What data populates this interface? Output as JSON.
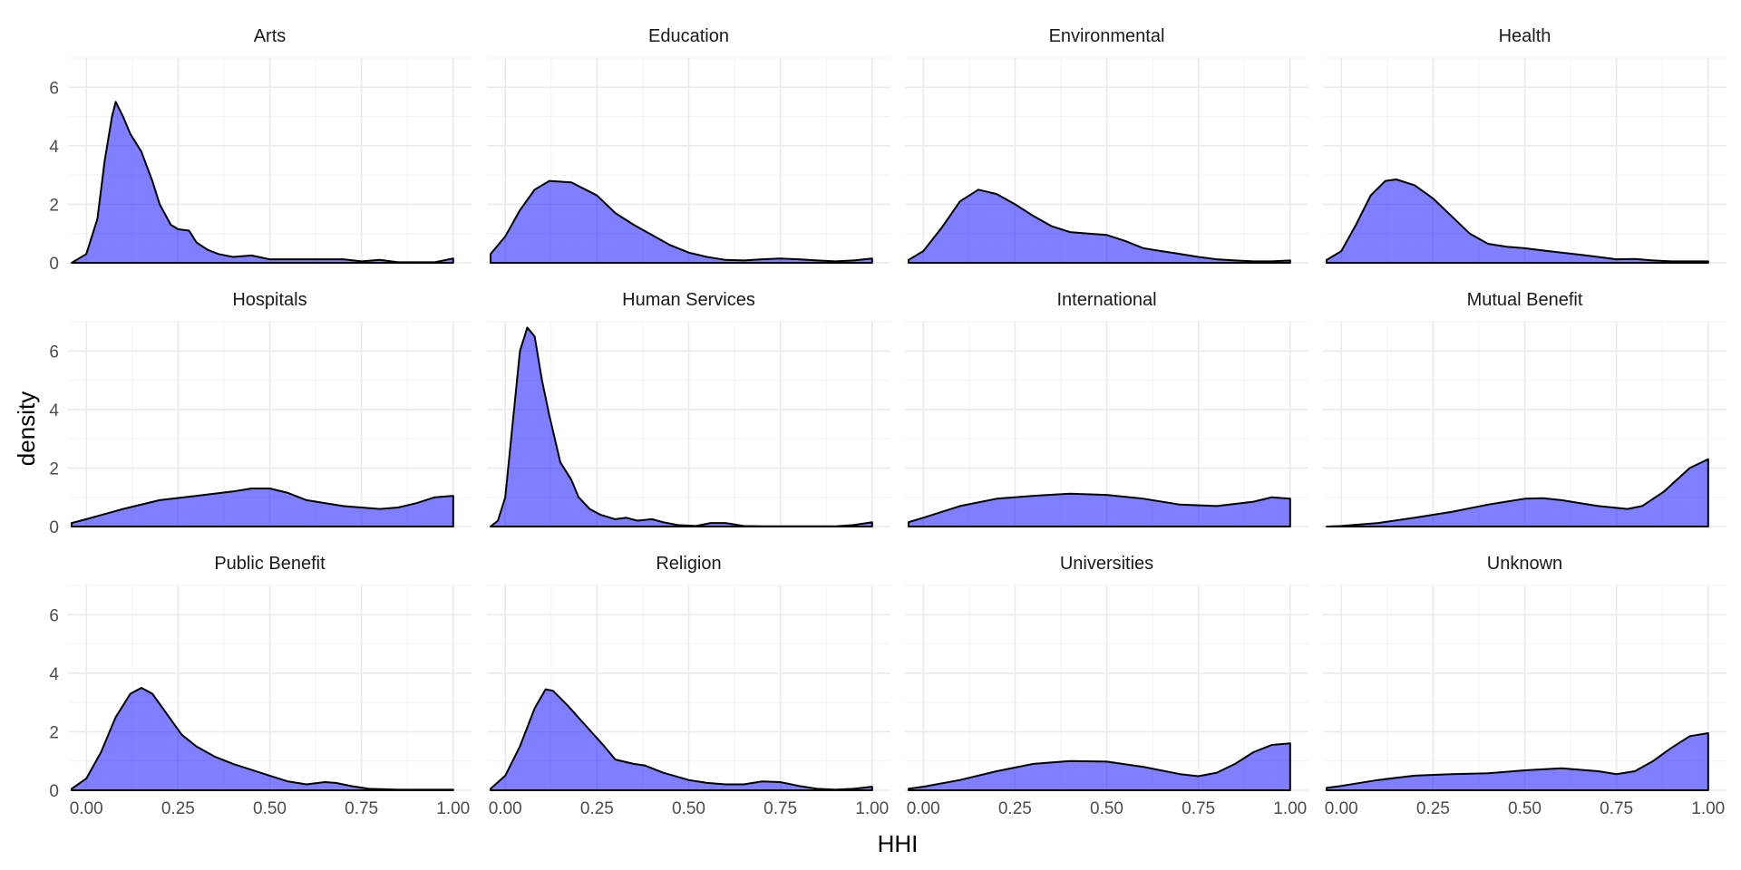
{
  "chart_data": {
    "type": "area",
    "xlabel": "HHI",
    "ylabel": "density",
    "xlim": [
      -0.05,
      1.05
    ],
    "ylim": [
      0,
      7
    ],
    "x_ticks": [
      0.0,
      0.25,
      0.5,
      0.75,
      1.0
    ],
    "x_tick_labels": [
      "0.00",
      "0.25",
      "0.50",
      "0.75",
      "1.00"
    ],
    "y_ticks": [
      0,
      2,
      4,
      6
    ],
    "y_tick_labels": [
      "0",
      "2",
      "4",
      "6"
    ],
    "grid": true,
    "fill_color": "#0000ff",
    "fill_opacity": 0.5,
    "line_color": "#000000",
    "panels": [
      {
        "title": "Arts",
        "points": [
          [
            -0.04,
            0.0
          ],
          [
            0.0,
            0.3
          ],
          [
            0.03,
            1.5
          ],
          [
            0.05,
            3.5
          ],
          [
            0.07,
            5.0
          ],
          [
            0.08,
            5.5
          ],
          [
            0.1,
            5.0
          ],
          [
            0.12,
            4.4
          ],
          [
            0.15,
            3.8
          ],
          [
            0.18,
            2.8
          ],
          [
            0.2,
            2.0
          ],
          [
            0.23,
            1.3
          ],
          [
            0.25,
            1.15
          ],
          [
            0.28,
            1.1
          ],
          [
            0.3,
            0.7
          ],
          [
            0.33,
            0.45
          ],
          [
            0.36,
            0.3
          ],
          [
            0.4,
            0.2
          ],
          [
            0.45,
            0.25
          ],
          [
            0.5,
            0.12
          ],
          [
            0.6,
            0.12
          ],
          [
            0.7,
            0.12
          ],
          [
            0.75,
            0.05
          ],
          [
            0.8,
            0.1
          ],
          [
            0.85,
            0.02
          ],
          [
            0.9,
            0.02
          ],
          [
            0.95,
            0.02
          ],
          [
            1.0,
            0.15
          ]
        ]
      },
      {
        "title": "Education",
        "points": [
          [
            -0.04,
            0.3
          ],
          [
            0.0,
            0.9
          ],
          [
            0.04,
            1.8
          ],
          [
            0.08,
            2.5
          ],
          [
            0.12,
            2.8
          ],
          [
            0.18,
            2.75
          ],
          [
            0.25,
            2.3
          ],
          [
            0.3,
            1.7
          ],
          [
            0.35,
            1.3
          ],
          [
            0.4,
            0.95
          ],
          [
            0.45,
            0.6
          ],
          [
            0.5,
            0.35
          ],
          [
            0.55,
            0.2
          ],
          [
            0.6,
            0.1
          ],
          [
            0.65,
            0.08
          ],
          [
            0.7,
            0.12
          ],
          [
            0.75,
            0.15
          ],
          [
            0.8,
            0.12
          ],
          [
            0.85,
            0.08
          ],
          [
            0.9,
            0.05
          ],
          [
            0.95,
            0.08
          ],
          [
            1.0,
            0.15
          ]
        ]
      },
      {
        "title": "Environmental",
        "points": [
          [
            -0.04,
            0.1
          ],
          [
            0.0,
            0.4
          ],
          [
            0.05,
            1.2
          ],
          [
            0.1,
            2.1
          ],
          [
            0.15,
            2.5
          ],
          [
            0.2,
            2.35
          ],
          [
            0.25,
            2.0
          ],
          [
            0.3,
            1.6
          ],
          [
            0.35,
            1.25
          ],
          [
            0.4,
            1.05
          ],
          [
            0.45,
            1.0
          ],
          [
            0.5,
            0.95
          ],
          [
            0.55,
            0.75
          ],
          [
            0.6,
            0.5
          ],
          [
            0.65,
            0.4
          ],
          [
            0.7,
            0.3
          ],
          [
            0.75,
            0.2
          ],
          [
            0.8,
            0.12
          ],
          [
            0.85,
            0.08
          ],
          [
            0.9,
            0.05
          ],
          [
            0.95,
            0.05
          ],
          [
            1.0,
            0.08
          ]
        ]
      },
      {
        "title": "Health",
        "points": [
          [
            -0.04,
            0.1
          ],
          [
            0.0,
            0.4
          ],
          [
            0.04,
            1.3
          ],
          [
            0.08,
            2.3
          ],
          [
            0.12,
            2.8
          ],
          [
            0.15,
            2.85
          ],
          [
            0.2,
            2.65
          ],
          [
            0.25,
            2.2
          ],
          [
            0.3,
            1.6
          ],
          [
            0.35,
            1.0
          ],
          [
            0.4,
            0.65
          ],
          [
            0.45,
            0.55
          ],
          [
            0.5,
            0.5
          ],
          [
            0.55,
            0.42
          ],
          [
            0.6,
            0.35
          ],
          [
            0.65,
            0.28
          ],
          [
            0.7,
            0.2
          ],
          [
            0.75,
            0.12
          ],
          [
            0.8,
            0.13
          ],
          [
            0.85,
            0.08
          ],
          [
            0.9,
            0.05
          ],
          [
            0.95,
            0.05
          ],
          [
            1.0,
            0.05
          ]
        ]
      },
      {
        "title": "Hospitals",
        "points": [
          [
            -0.04,
            0.12
          ],
          [
            0.0,
            0.25
          ],
          [
            0.1,
            0.6
          ],
          [
            0.2,
            0.9
          ],
          [
            0.3,
            1.05
          ],
          [
            0.4,
            1.2
          ],
          [
            0.45,
            1.3
          ],
          [
            0.5,
            1.3
          ],
          [
            0.55,
            1.15
          ],
          [
            0.6,
            0.9
          ],
          [
            0.7,
            0.7
          ],
          [
            0.8,
            0.6
          ],
          [
            0.85,
            0.65
          ],
          [
            0.9,
            0.8
          ],
          [
            0.95,
            1.0
          ],
          [
            1.0,
            1.05
          ]
        ]
      },
      {
        "title": "Human Services",
        "points": [
          [
            -0.04,
            0.0
          ],
          [
            -0.02,
            0.2
          ],
          [
            0.0,
            1.0
          ],
          [
            0.02,
            3.5
          ],
          [
            0.04,
            6.0
          ],
          [
            0.06,
            6.8
          ],
          [
            0.08,
            6.5
          ],
          [
            0.1,
            5.0
          ],
          [
            0.12,
            3.8
          ],
          [
            0.15,
            2.2
          ],
          [
            0.18,
            1.6
          ],
          [
            0.2,
            1.0
          ],
          [
            0.23,
            0.6
          ],
          [
            0.26,
            0.4
          ],
          [
            0.3,
            0.25
          ],
          [
            0.33,
            0.3
          ],
          [
            0.36,
            0.2
          ],
          [
            0.4,
            0.25
          ],
          [
            0.43,
            0.15
          ],
          [
            0.47,
            0.05
          ],
          [
            0.52,
            0.02
          ],
          [
            0.56,
            0.12
          ],
          [
            0.6,
            0.12
          ],
          [
            0.65,
            0.02
          ],
          [
            0.7,
            0.01
          ],
          [
            0.8,
            0.01
          ],
          [
            0.9,
            0.01
          ],
          [
            0.95,
            0.05
          ],
          [
            1.0,
            0.15
          ]
        ]
      },
      {
        "title": "International",
        "points": [
          [
            -0.04,
            0.15
          ],
          [
            0.0,
            0.3
          ],
          [
            0.1,
            0.7
          ],
          [
            0.2,
            0.95
          ],
          [
            0.3,
            1.05
          ],
          [
            0.4,
            1.12
          ],
          [
            0.5,
            1.08
          ],
          [
            0.6,
            0.95
          ],
          [
            0.7,
            0.75
          ],
          [
            0.8,
            0.7
          ],
          [
            0.9,
            0.85
          ],
          [
            0.95,
            1.0
          ],
          [
            1.0,
            0.95
          ]
        ]
      },
      {
        "title": "Mutual Benefit",
        "points": [
          [
            -0.04,
            0.0
          ],
          [
            0.0,
            0.02
          ],
          [
            0.1,
            0.12
          ],
          [
            0.2,
            0.3
          ],
          [
            0.3,
            0.5
          ],
          [
            0.4,
            0.75
          ],
          [
            0.5,
            0.95
          ],
          [
            0.55,
            0.97
          ],
          [
            0.6,
            0.9
          ],
          [
            0.7,
            0.7
          ],
          [
            0.78,
            0.6
          ],
          [
            0.82,
            0.7
          ],
          [
            0.88,
            1.2
          ],
          [
            0.95,
            2.0
          ],
          [
            1.0,
            2.3
          ]
        ]
      },
      {
        "title": "Public Benefit",
        "points": [
          [
            -0.04,
            0.05
          ],
          [
            0.0,
            0.4
          ],
          [
            0.04,
            1.3
          ],
          [
            0.08,
            2.5
          ],
          [
            0.12,
            3.3
          ],
          [
            0.15,
            3.5
          ],
          [
            0.18,
            3.3
          ],
          [
            0.22,
            2.6
          ],
          [
            0.26,
            1.9
          ],
          [
            0.3,
            1.5
          ],
          [
            0.35,
            1.15
          ],
          [
            0.4,
            0.9
          ],
          [
            0.45,
            0.7
          ],
          [
            0.5,
            0.5
          ],
          [
            0.55,
            0.3
          ],
          [
            0.6,
            0.2
          ],
          [
            0.65,
            0.28
          ],
          [
            0.68,
            0.25
          ],
          [
            0.72,
            0.15
          ],
          [
            0.77,
            0.05
          ],
          [
            0.85,
            0.02
          ],
          [
            0.9,
            0.02
          ],
          [
            0.95,
            0.02
          ],
          [
            1.0,
            0.02
          ]
        ]
      },
      {
        "title": "Religion",
        "points": [
          [
            -0.04,
            0.05
          ],
          [
            0.0,
            0.5
          ],
          [
            0.04,
            1.5
          ],
          [
            0.08,
            2.8
          ],
          [
            0.11,
            3.45
          ],
          [
            0.13,
            3.4
          ],
          [
            0.17,
            2.9
          ],
          [
            0.22,
            2.2
          ],
          [
            0.27,
            1.5
          ],
          [
            0.3,
            1.05
          ],
          [
            0.35,
            0.9
          ],
          [
            0.38,
            0.85
          ],
          [
            0.43,
            0.6
          ],
          [
            0.5,
            0.35
          ],
          [
            0.55,
            0.25
          ],
          [
            0.6,
            0.2
          ],
          [
            0.65,
            0.2
          ],
          [
            0.7,
            0.3
          ],
          [
            0.75,
            0.28
          ],
          [
            0.8,
            0.15
          ],
          [
            0.85,
            0.05
          ],
          [
            0.9,
            0.02
          ],
          [
            0.95,
            0.05
          ],
          [
            1.0,
            0.12
          ]
        ]
      },
      {
        "title": "Universities",
        "points": [
          [
            -0.04,
            0.05
          ],
          [
            0.0,
            0.12
          ],
          [
            0.1,
            0.35
          ],
          [
            0.2,
            0.65
          ],
          [
            0.3,
            0.9
          ],
          [
            0.4,
            1.0
          ],
          [
            0.5,
            0.98
          ],
          [
            0.6,
            0.8
          ],
          [
            0.7,
            0.55
          ],
          [
            0.75,
            0.48
          ],
          [
            0.8,
            0.6
          ],
          [
            0.85,
            0.9
          ],
          [
            0.9,
            1.3
          ],
          [
            0.95,
            1.55
          ],
          [
            1.0,
            1.6
          ]
        ]
      },
      {
        "title": "Unknown",
        "points": [
          [
            -0.04,
            0.08
          ],
          [
            0.0,
            0.15
          ],
          [
            0.1,
            0.35
          ],
          [
            0.2,
            0.5
          ],
          [
            0.3,
            0.55
          ],
          [
            0.4,
            0.58
          ],
          [
            0.5,
            0.68
          ],
          [
            0.6,
            0.75
          ],
          [
            0.7,
            0.65
          ],
          [
            0.75,
            0.55
          ],
          [
            0.8,
            0.65
          ],
          [
            0.85,
            1.0
          ],
          [
            0.9,
            1.45
          ],
          [
            0.95,
            1.85
          ],
          [
            1.0,
            1.95
          ]
        ]
      }
    ]
  }
}
